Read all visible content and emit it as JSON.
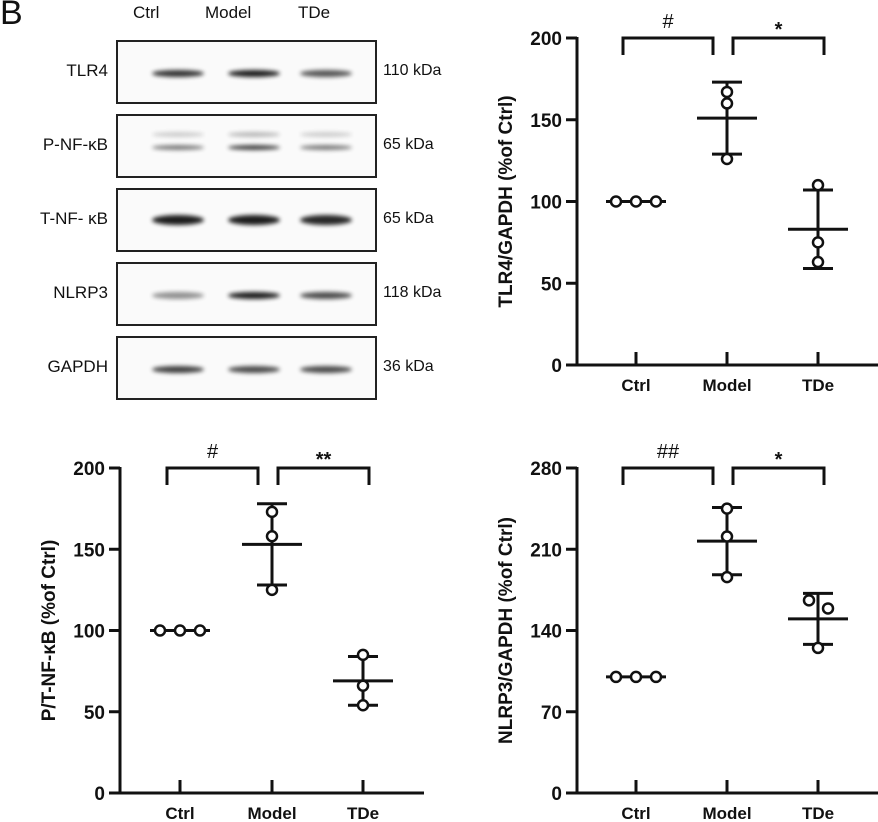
{
  "panel_label": "B",
  "blot": {
    "lanes": [
      "Ctrl",
      "Model",
      "TDe"
    ],
    "rows": [
      {
        "label": "TLR4",
        "kda": "110 kDa",
        "band_intensity": [
          0.85,
          0.95,
          0.7
        ]
      },
      {
        "label": "P-NF-κB",
        "kda": "65 kDa",
        "band_intensity": [
          0.55,
          0.8,
          0.55
        ]
      },
      {
        "label": "T-NF- κB",
        "kda": "65 kDa",
        "band_intensity": [
          0.95,
          0.95,
          0.9
        ]
      },
      {
        "label": "NLRP3",
        "kda": "118 kDa",
        "band_intensity": [
          0.45,
          0.95,
          0.75
        ]
      },
      {
        "label": "GAPDH",
        "kda": "36 kDa",
        "band_intensity": [
          0.8,
          0.75,
          0.75
        ]
      }
    ]
  },
  "chart_data": [
    {
      "type": "scatter",
      "ylabel": "TLR4/GAPDH (%of Ctrl)",
      "categories": [
        "Ctrl",
        "Model",
        "TDe"
      ],
      "ylim": [
        0,
        200
      ],
      "yticks": [
        0,
        50,
        100,
        150,
        200
      ],
      "points": [
        [
          100,
          100,
          100
        ],
        [
          167,
          160,
          126
        ],
        [
          110,
          75,
          63
        ]
      ],
      "mean": [
        100,
        151,
        83
      ],
      "sd": [
        0,
        22,
        24
      ],
      "significance": [
        {
          "from": "Ctrl",
          "to": "Model",
          "label": "#"
        },
        {
          "from": "Model",
          "to": "TDe",
          "label": "*"
        }
      ]
    },
    {
      "type": "scatter",
      "ylabel": "P/T-NF-κB (%of Ctrl)",
      "categories": [
        "Ctrl",
        "Model",
        "TDe"
      ],
      "ylim": [
        0,
        200
      ],
      "yticks": [
        0,
        50,
        100,
        150,
        200
      ],
      "points": [
        [
          100,
          100,
          100
        ],
        [
          173,
          158,
          125
        ],
        [
          85,
          66,
          54
        ]
      ],
      "mean": [
        100,
        153,
        69
      ],
      "sd": [
        0,
        25,
        15
      ],
      "significance": [
        {
          "from": "Ctrl",
          "to": "Model",
          "label": "#"
        },
        {
          "from": "Model",
          "to": "TDe",
          "label": "**"
        }
      ]
    },
    {
      "type": "scatter",
      "ylabel": "NLRP3/GAPDH (%of Ctrl)",
      "categories": [
        "Ctrl",
        "Model",
        "TDe"
      ],
      "ylim": [
        0,
        280
      ],
      "yticks": [
        0,
        70,
        140,
        210,
        280
      ],
      "points": [
        [
          100,
          100,
          100
        ],
        [
          245,
          221,
          186
        ],
        [
          166,
          159,
          125
        ]
      ],
      "mean": [
        100,
        217,
        150
      ],
      "sd": [
        0,
        29,
        22
      ],
      "significance": [
        {
          "from": "Ctrl",
          "to": "Model",
          "label": "##"
        },
        {
          "from": "Model",
          "to": "TDe",
          "label": "*"
        }
      ]
    }
  ]
}
